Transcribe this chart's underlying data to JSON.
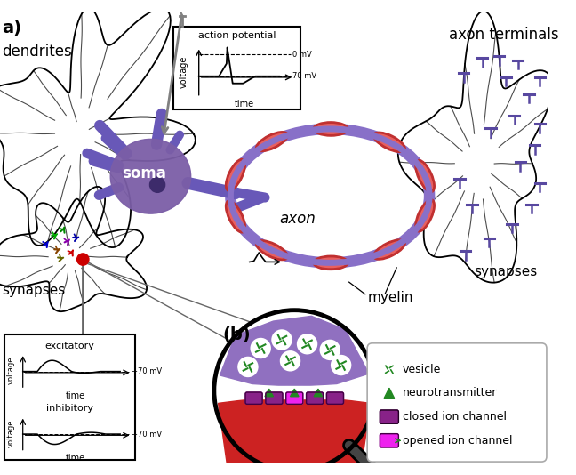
{
  "title_a": "a)",
  "title_b": "(b)",
  "label_dendrites": "dendrites",
  "label_soma": "soma",
  "label_axon": "axon",
  "label_myelin": "myelin",
  "label_synapses_left": "synapses",
  "label_synapses_right": "synapses",
  "label_axon_terminals": "axon terminals",
  "label_action_potential": "action potential",
  "label_0mv": "0 mV",
  "label_70mv": "70 mV",
  "label_time_ap": "time",
  "label_voltage_ap": "voltage",
  "label_excitatory": "excitatory",
  "label_inhibitory": "inhibitory",
  "label_time_exc": "time",
  "label_time_inh": "time",
  "label_70mv_exc": "−70 mV",
  "label_70mv_inh": "−70 mV",
  "label_vesicle": "vesicle",
  "label_neurotransmitter": "neurotransmitter",
  "label_closed_ion": "closed ion channel",
  "label_opened_ion": "opened ion channel",
  "color_soma": "#7b5ea7",
  "color_soma_dark": "#3d2b6b",
  "color_axon_outer": "#8870c8",
  "color_myelin_outer": "#c03030",
  "color_myelin_inner": "#e86060",
  "color_background": "#ffffff",
  "color_axon_terminal": "#5848a0",
  "color_synapse_red": "#cc3333",
  "color_synapse_circle": "#cc0000",
  "color_presynaptic": "#9070c0",
  "color_postsynaptic": "#cc2222",
  "color_vesicle_fill": "#ffffff",
  "color_vesicle_border": "#228822",
  "color_channel_closed": "#882288",
  "color_channel_open": "#ee22ee",
  "color_neurotransmitter": "#228822",
  "color_dendrite_line": "#000000",
  "color_soma_process": "#6858b8"
}
